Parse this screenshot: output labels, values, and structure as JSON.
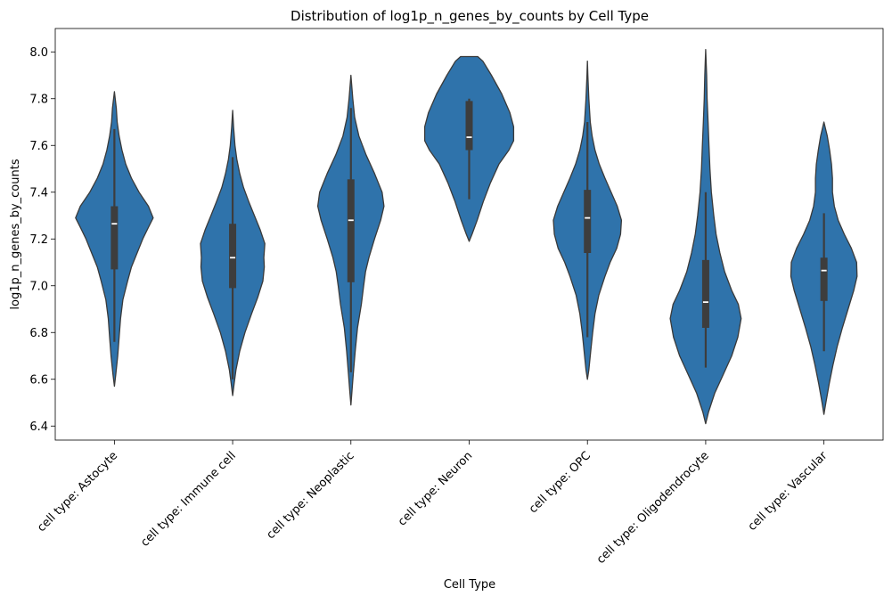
{
  "chart_data": {
    "type": "violin",
    "title": "Distribution of log1p_n_genes_by_counts by Cell Type",
    "xlabel": "Cell Type",
    "ylabel": "log1p_n_genes_by_counts",
    "ylim": [
      6.34,
      8.1
    ],
    "yticks": [
      "6.4",
      "6.6",
      "6.8",
      "7.0",
      "7.2",
      "7.4",
      "7.6",
      "7.8",
      "8.0"
    ],
    "grid": false,
    "legend": "none",
    "colors": {
      "violin_fill": "#2f73ab",
      "violin_edge": "#3a3a3a",
      "box": "#3d3d3d",
      "median": "#ffffff"
    },
    "categories": [
      "cell type: Astocyte",
      "cell type: Immune cell",
      "cell type: Neoplastic",
      "cell type: Neuron",
      "cell type: OPC",
      "cell type: Oligodendrocyte",
      "cell type: Vascular"
    ],
    "violins": [
      {
        "q1": 7.07,
        "median": 7.265,
        "q3": 7.34,
        "whisker_low": 6.76,
        "whisker_high": 7.67,
        "profile": [
          [
            6.57,
            0.0
          ],
          [
            6.62,
            0.03
          ],
          [
            6.7,
            0.07
          ],
          [
            6.78,
            0.1
          ],
          [
            6.86,
            0.13
          ],
          [
            6.94,
            0.18
          ],
          [
            7.02,
            0.28
          ],
          [
            7.08,
            0.36
          ],
          [
            7.13,
            0.46
          ],
          [
            7.2,
            0.6
          ],
          [
            7.25,
            0.72
          ],
          [
            7.29,
            0.82
          ],
          [
            7.34,
            0.72
          ],
          [
            7.4,
            0.52
          ],
          [
            7.46,
            0.36
          ],
          [
            7.52,
            0.24
          ],
          [
            7.58,
            0.16
          ],
          [
            7.64,
            0.1
          ],
          [
            7.7,
            0.06
          ],
          [
            7.76,
            0.04
          ],
          [
            7.83,
            0.0
          ]
        ]
      },
      {
        "q1": 6.99,
        "median": 7.12,
        "q3": 7.265,
        "whisker_low": 6.6,
        "whisker_high": 7.55,
        "profile": [
          [
            6.53,
            0.0
          ],
          [
            6.58,
            0.03
          ],
          [
            6.64,
            0.07
          ],
          [
            6.72,
            0.15
          ],
          [
            6.8,
            0.26
          ],
          [
            6.88,
            0.4
          ],
          [
            6.95,
            0.53
          ],
          [
            7.02,
            0.64
          ],
          [
            7.08,
            0.67
          ],
          [
            7.12,
            0.66
          ],
          [
            7.18,
            0.68
          ],
          [
            7.24,
            0.58
          ],
          [
            7.3,
            0.46
          ],
          [
            7.36,
            0.34
          ],
          [
            7.42,
            0.23
          ],
          [
            7.48,
            0.15
          ],
          [
            7.54,
            0.09
          ],
          [
            7.6,
            0.05
          ],
          [
            7.68,
            0.02
          ],
          [
            7.75,
            0.0
          ]
        ]
      },
      {
        "q1": 7.015,
        "median": 7.28,
        "q3": 7.455,
        "whisker_low": 6.63,
        "whisker_high": 7.76,
        "profile": [
          [
            6.49,
            0.0
          ],
          [
            6.54,
            0.02
          ],
          [
            6.62,
            0.05
          ],
          [
            6.72,
            0.09
          ],
          [
            6.82,
            0.14
          ],
          [
            6.92,
            0.22
          ],
          [
            7.0,
            0.27
          ],
          [
            7.06,
            0.31
          ],
          [
            7.12,
            0.38
          ],
          [
            7.2,
            0.5
          ],
          [
            7.28,
            0.63
          ],
          [
            7.34,
            0.7
          ],
          [
            7.4,
            0.66
          ],
          [
            7.48,
            0.5
          ],
          [
            7.56,
            0.32
          ],
          [
            7.64,
            0.17
          ],
          [
            7.72,
            0.08
          ],
          [
            7.8,
            0.04
          ],
          [
            7.9,
            0.0
          ]
        ]
      },
      {
        "q1": 7.58,
        "median": 7.635,
        "q3": 7.79,
        "whisker_low": 7.37,
        "whisker_high": 7.8,
        "profile": [
          [
            7.19,
            0.0
          ],
          [
            7.22,
            0.06
          ],
          [
            7.28,
            0.17
          ],
          [
            7.36,
            0.3
          ],
          [
            7.44,
            0.45
          ],
          [
            7.52,
            0.63
          ],
          [
            7.58,
            0.84
          ],
          [
            7.62,
            0.94
          ],
          [
            7.68,
            0.94
          ],
          [
            7.74,
            0.86
          ],
          [
            7.82,
            0.69
          ],
          [
            7.9,
            0.47
          ],
          [
            7.96,
            0.29
          ],
          [
            7.98,
            0.18
          ],
          [
            7.98,
            0.0
          ]
        ]
      },
      {
        "q1": 7.14,
        "median": 7.29,
        "q3": 7.41,
        "whisker_low": 6.78,
        "whisker_high": 7.7,
        "profile": [
          [
            6.6,
            0.0
          ],
          [
            6.64,
            0.03
          ],
          [
            6.72,
            0.07
          ],
          [
            6.8,
            0.11
          ],
          [
            6.88,
            0.16
          ],
          [
            6.96,
            0.24
          ],
          [
            7.04,
            0.37
          ],
          [
            7.1,
            0.48
          ],
          [
            7.16,
            0.62
          ],
          [
            7.22,
            0.7
          ],
          [
            7.28,
            0.72
          ],
          [
            7.34,
            0.63
          ],
          [
            7.4,
            0.5
          ],
          [
            7.46,
            0.37
          ],
          [
            7.52,
            0.25
          ],
          [
            7.58,
            0.16
          ],
          [
            7.64,
            0.1
          ],
          [
            7.7,
            0.06
          ],
          [
            7.8,
            0.03
          ],
          [
            7.9,
            0.01
          ],
          [
            7.96,
            0.0
          ]
        ]
      },
      {
        "q1": 6.82,
        "median": 6.93,
        "q3": 7.11,
        "whisker_low": 6.65,
        "whisker_high": 7.4,
        "profile": [
          [
            6.41,
            0.0
          ],
          [
            6.46,
            0.06
          ],
          [
            6.54,
            0.19
          ],
          [
            6.62,
            0.37
          ],
          [
            6.7,
            0.55
          ],
          [
            6.78,
            0.68
          ],
          [
            6.86,
            0.75
          ],
          [
            6.92,
            0.69
          ],
          [
            6.98,
            0.55
          ],
          [
            7.06,
            0.4
          ],
          [
            7.14,
            0.3
          ],
          [
            7.22,
            0.22
          ],
          [
            7.3,
            0.17
          ],
          [
            7.4,
            0.12
          ],
          [
            7.5,
            0.09
          ],
          [
            7.6,
            0.07
          ],
          [
            7.7,
            0.05
          ],
          [
            7.8,
            0.03
          ],
          [
            7.9,
            0.02
          ],
          [
            8.01,
            0.0
          ]
        ]
      },
      {
        "q1": 6.935,
        "median": 7.065,
        "q3": 7.12,
        "whisker_low": 6.72,
        "whisker_high": 7.31,
        "profile": [
          [
            6.45,
            0.0
          ],
          [
            6.5,
            0.04
          ],
          [
            6.58,
            0.11
          ],
          [
            6.66,
            0.19
          ],
          [
            6.74,
            0.28
          ],
          [
            6.82,
            0.39
          ],
          [
            6.9,
            0.51
          ],
          [
            6.98,
            0.63
          ],
          [
            7.04,
            0.7
          ],
          [
            7.1,
            0.69
          ],
          [
            7.16,
            0.58
          ],
          [
            7.22,
            0.43
          ],
          [
            7.28,
            0.3
          ],
          [
            7.34,
            0.22
          ],
          [
            7.4,
            0.18
          ],
          [
            7.46,
            0.18
          ],
          [
            7.52,
            0.16
          ],
          [
            7.58,
            0.12
          ],
          [
            7.64,
            0.07
          ],
          [
            7.7,
            0.0
          ]
        ]
      }
    ]
  }
}
